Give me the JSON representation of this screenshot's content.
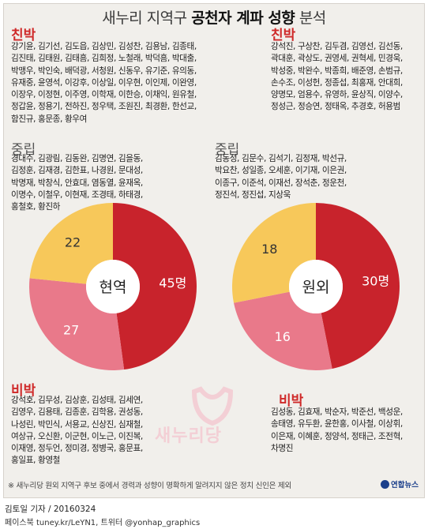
{
  "title": {
    "prefix": "새누리 지역구 ",
    "bold": "공천자 계파 성향",
    "suffix": " 분석"
  },
  "left": {
    "center_label": "현역",
    "categories": {
      "chin": "친박",
      "jung": "중립",
      "bi": "비박"
    },
    "chin_names": [
      "강기윤, 김기선, 김도읍, 김상민, 김성찬, 김용남, 김종태,",
      "김진태, 김태원, 김태흠, 김희정, 노철래, 박덕흠, 박대출,",
      "박맹우, 박인숙, 배덕광, 서청원, 신동우, 유기준, 유의동,",
      "유재중, 윤영석, 이강후, 이상일, 이우현, 이인제, 이완영,",
      "이장우, 이정현, 이주영, 이학재, 이한승, 이채익, 원유철,",
      "정갑윤, 정용기, 전하진, 정우택, 조원진, 최경환, 한선교,",
      "함진규, 홍문종, 황우여"
    ],
    "jung_names": [
      "경대수, 김광림, 김동완, 김명연, 김을동,",
      "김정훈, 김재경, 김한표, 나경원, 문대성,",
      "박명재, 박창식, 안효대, 염동열, 윤재옥,",
      "이명수, 이철우, 이현재, 조경태, 하태경,",
      "홍철호, 황진하"
    ],
    "bi_names": [
      "강석호, 김무성, 김상훈, 김성태, 김세연,",
      "김영우, 김용태, 김종훈, 김학용, 권성동,",
      "나성린, 박민식, 서용교, 신상진, 심재철,",
      "여상규, 오신환, 이군현, 이노근, 이진복,",
      "이재영, 정두언, 정미경, 정병국, 홍문표,",
      "홍일표, 황영철"
    ]
  },
  "right": {
    "center_label": "원외",
    "categories": {
      "chin": "친박",
      "jung": "중립",
      "bi": "비박"
    },
    "chin_names": [
      "강석진, 구상찬, 김두겸, 김영선, 김선동,",
      "곽대훈, 곽상도, 권영세, 권혁세, 민경욱,",
      "박성중, 박완수, 박종희, 배준영, 손범규,",
      "손수조, 이성헌, 정종섭, 최홍재, 안대희,",
      "양명모, 엄용수, 유영하, 윤상직, 이양수,",
      "정성근, 정승연, 정태옥, 추경호, 허용범"
    ],
    "jung_names": [
      "김동성, 김문수, 김석기, 김정재, 박선규,",
      "박요찬, 성일종, 오세훈, 이기재, 이은권,",
      "이종구, 이준석, 이재선, 장석춘, 정운천,",
      "정진석, 정진섭, 지상욱"
    ],
    "bi_names": [
      "김성동, 김효재, 박순자, 박준선, 백성운,",
      "송태영, 유두환, 윤한홍, 이사철, 이상휘,",
      "이은재, 이혜훈, 정양석, 정태근, 조전혁,",
      "차명진"
    ]
  },
  "chart_data": [
    {
      "type": "pie",
      "center_label": "현역",
      "slices": [
        {
          "label": "친박",
          "value": 45,
          "display": "45명",
          "color": "#c8232c"
        },
        {
          "label": "비박",
          "value": 27,
          "display": "27",
          "color": "#e9798a"
        },
        {
          "label": "중립",
          "value": 22,
          "display": "22",
          "color": "#f7c85a"
        }
      ]
    },
    {
      "type": "pie",
      "center_label": "원외",
      "slices": [
        {
          "label": "친박",
          "value": 30,
          "display": "30명",
          "color": "#c8232c"
        },
        {
          "label": "비박",
          "value": 16,
          "display": "16",
          "color": "#e9798a"
        },
        {
          "label": "중립",
          "value": 18,
          "display": "18",
          "color": "#f7c85a"
        }
      ]
    }
  ],
  "watermark_text": "새누리당",
  "footnote": "※ 새누리당 원외 지역구 후보 중에서 경력과 성향이 명확하게 알려지지 않은 정치 신인은 제외",
  "credit_line1": "김토일 기자 / 20160324",
  "credit_line2": "페이스북 tuney.kr/LeYN1, 트위터 @yonhap_graphics",
  "logo_text": "연합뉴스"
}
